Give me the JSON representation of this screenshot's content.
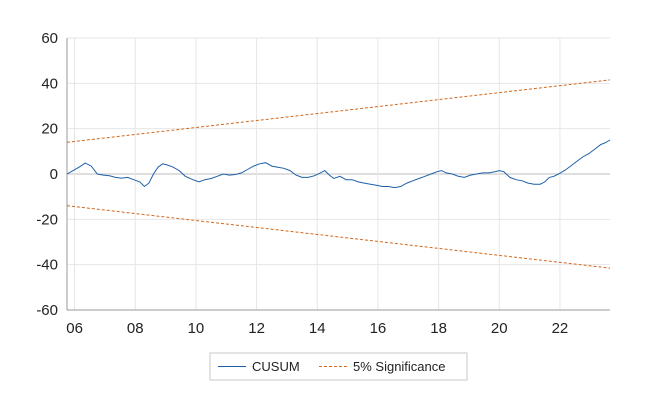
{
  "chart_data": {
    "type": "line",
    "title": "",
    "xlabel": "",
    "ylabel": "",
    "xlim": [
      2005.75,
      2023.65
    ],
    "ylim": [
      -60,
      60
    ],
    "x_tick_labels": [
      "06",
      "08",
      "10",
      "12",
      "14",
      "16",
      "18",
      "20",
      "22"
    ],
    "x_tick_values": [
      2006,
      2008,
      2010,
      2012,
      2014,
      2016,
      2018,
      2020,
      2022
    ],
    "y_ticks": [
      60,
      40,
      20,
      0,
      -20,
      -40,
      -60
    ],
    "grid": true,
    "legend_position": "bottom-center",
    "series": [
      {
        "name": "CUSUM",
        "color": "#1f5fa8",
        "style": "solid",
        "points": [
          [
            2005.75,
            0
          ],
          [
            2005.95,
            1.5
          ],
          [
            2006.15,
            3
          ],
          [
            2006.35,
            4.8
          ],
          [
            2006.55,
            3.5
          ],
          [
            2006.75,
            0
          ],
          [
            2006.95,
            -0.5
          ],
          [
            2007.15,
            -0.8
          ],
          [
            2007.35,
            -1.5
          ],
          [
            2007.55,
            -1.8
          ],
          [
            2007.75,
            -1.5
          ],
          [
            2007.95,
            -2.5
          ],
          [
            2008.15,
            -3.5
          ],
          [
            2008.3,
            -5.5
          ],
          [
            2008.45,
            -4
          ],
          [
            2008.6,
            0
          ],
          [
            2008.75,
            3
          ],
          [
            2008.9,
            4.5
          ],
          [
            2009.05,
            4
          ],
          [
            2009.25,
            3
          ],
          [
            2009.45,
            1.5
          ],
          [
            2009.65,
            -1
          ],
          [
            2009.9,
            -2.5
          ],
          [
            2010.1,
            -3.5
          ],
          [
            2010.3,
            -2.5
          ],
          [
            2010.5,
            -2
          ],
          [
            2010.7,
            -1
          ],
          [
            2010.9,
            0
          ],
          [
            2011.1,
            -0.5
          ],
          [
            2011.3,
            -0.2
          ],
          [
            2011.5,
            0.5
          ],
          [
            2011.7,
            2
          ],
          [
            2011.9,
            3.5
          ],
          [
            2012.1,
            4.5
          ],
          [
            2012.3,
            5
          ],
          [
            2012.5,
            3.5
          ],
          [
            2012.7,
            3
          ],
          [
            2012.9,
            2.5
          ],
          [
            2013.1,
            1.5
          ],
          [
            2013.3,
            -0.5
          ],
          [
            2013.5,
            -1.5
          ],
          [
            2013.7,
            -1.5
          ],
          [
            2013.9,
            -0.8
          ],
          [
            2014.1,
            0.5
          ],
          [
            2014.25,
            1.5
          ],
          [
            2014.4,
            -0.5
          ],
          [
            2014.55,
            -2
          ],
          [
            2014.75,
            -1
          ],
          [
            2014.95,
            -2.5
          ],
          [
            2015.15,
            -2.5
          ],
          [
            2015.35,
            -3.5
          ],
          [
            2015.55,
            -4
          ],
          [
            2015.75,
            -4.5
          ],
          [
            2015.95,
            -5
          ],
          [
            2016.15,
            -5.5
          ],
          [
            2016.35,
            -5.5
          ],
          [
            2016.55,
            -6
          ],
          [
            2016.75,
            -5.5
          ],
          [
            2016.95,
            -4
          ],
          [
            2017.15,
            -3
          ],
          [
            2017.35,
            -2
          ],
          [
            2017.55,
            -1
          ],
          [
            2017.75,
            0
          ],
          [
            2017.95,
            1
          ],
          [
            2018.1,
            1.5
          ],
          [
            2018.25,
            0.5
          ],
          [
            2018.45,
            0
          ],
          [
            2018.65,
            -1
          ],
          [
            2018.85,
            -1.5
          ],
          [
            2019.05,
            -0.5
          ],
          [
            2019.25,
            0
          ],
          [
            2019.45,
            0.5
          ],
          [
            2019.65,
            0.5
          ],
          [
            2019.85,
            1
          ],
          [
            2020.0,
            1.5
          ],
          [
            2020.15,
            1
          ],
          [
            2020.35,
            -1.5
          ],
          [
            2020.55,
            -2.5
          ],
          [
            2020.75,
            -3
          ],
          [
            2020.95,
            -4
          ],
          [
            2021.15,
            -4.5
          ],
          [
            2021.35,
            -4.5
          ],
          [
            2021.5,
            -3.5
          ],
          [
            2021.65,
            -1.5
          ],
          [
            2021.8,
            -1
          ],
          [
            2021.95,
            0
          ],
          [
            2022.15,
            1.5
          ],
          [
            2022.35,
            3.5
          ],
          [
            2022.55,
            5.5
          ],
          [
            2022.75,
            7.5
          ],
          [
            2022.95,
            9
          ],
          [
            2023.15,
            11
          ],
          [
            2023.35,
            13
          ],
          [
            2023.5,
            13.8
          ],
          [
            2023.65,
            15
          ]
        ]
      },
      {
        "name": "5% Significance",
        "color": "#d2691e",
        "style": "dashed",
        "points": [
          [
            2005.75,
            14
          ],
          [
            2023.65,
            41.5
          ]
        ]
      },
      {
        "name": "5% Significance",
        "color": "#d2691e",
        "style": "dashed",
        "show_in_legend": false,
        "points": [
          [
            2005.75,
            -14
          ],
          [
            2023.65,
            -41.5
          ]
        ]
      }
    ]
  }
}
